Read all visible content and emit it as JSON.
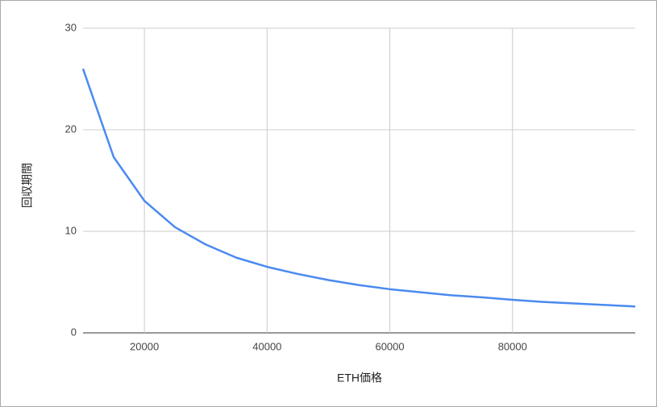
{
  "chart_data": {
    "type": "line",
    "x_label": "ETH価格",
    "y_label": "回収期間",
    "x": [
      10000,
      15000,
      20000,
      25000,
      30000,
      35000,
      40000,
      45000,
      50000,
      55000,
      60000,
      65000,
      70000,
      75000,
      80000,
      85000,
      90000,
      95000,
      100000
    ],
    "series": [
      {
        "name": "回収期間",
        "color": "#4a8af0",
        "values": [
          26,
          17.3,
          13,
          10.4,
          8.7,
          7.4,
          6.5,
          5.8,
          5.2,
          4.7,
          4.3,
          4,
          3.7,
          3.5,
          3.25,
          3.05,
          2.9,
          2.75,
          2.6
        ]
      }
    ],
    "xlim": [
      10000,
      100000
    ],
    "xticks": [
      20000,
      40000,
      60000,
      80000
    ],
    "ylim": [
      0,
      30
    ],
    "yticks": [
      0,
      10,
      20,
      30
    ],
    "grid": true
  }
}
